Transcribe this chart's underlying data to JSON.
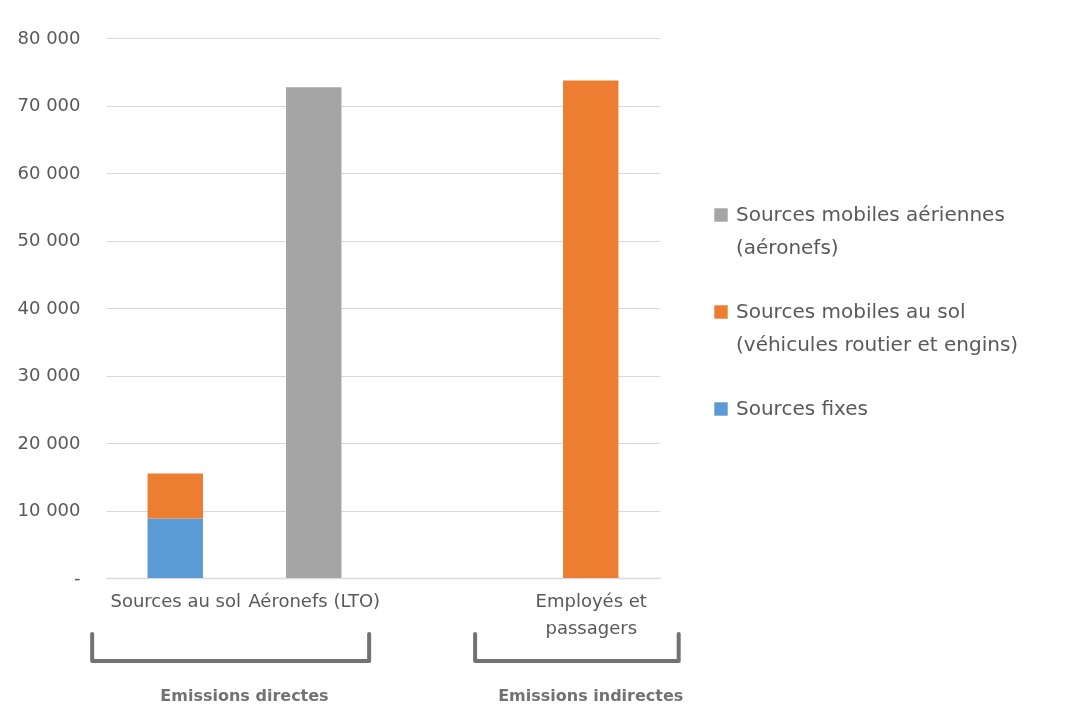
{
  "chart_data": {
    "type": "bar",
    "stacked": true,
    "categories": [
      "Sources au sol",
      "Aéronefs (LTO)",
      null,
      "Employés et passagers"
    ],
    "series": [
      {
        "name": "Sources fixes",
        "color": "#5b9bd5",
        "values": [
          8800,
          null,
          null,
          null
        ]
      },
      {
        "name": "Sources mobiles au sol (véhicules routier et engins)",
        "color": "#ed7d31",
        "values": [
          6700,
          null,
          null,
          73700
        ]
      },
      {
        "name": "Sources mobiles aériennes (aéronefs)",
        "color": "#a5a5a5",
        "values": [
          null,
          72700,
          null,
          null
        ]
      }
    ],
    "ylim": [
      0,
      80000
    ],
    "yticks": [
      {
        "value": 0,
        "label": "-"
      },
      {
        "value": 10000,
        "label": "10 000"
      },
      {
        "value": 20000,
        "label": "20 000"
      },
      {
        "value": 30000,
        "label": "30 000"
      },
      {
        "value": 40000,
        "label": "40 000"
      },
      {
        "value": 50000,
        "label": "50 000"
      },
      {
        "value": 60000,
        "label": "60 000"
      },
      {
        "value": 70000,
        "label": "70 000"
      },
      {
        "value": 80000,
        "label": "80 000"
      }
    ],
    "grid": "y",
    "legend": "right",
    "annotations": [
      "Emissions directes",
      "Emissions indirectes"
    ]
  }
}
